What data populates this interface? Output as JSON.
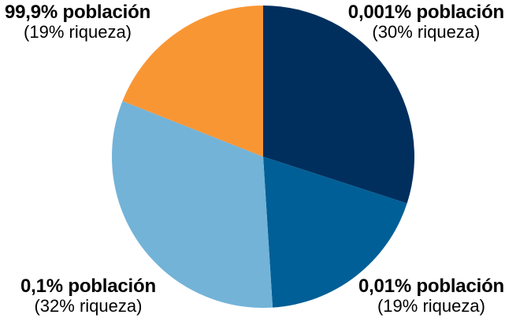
{
  "chart_data": {
    "type": "pie",
    "title": "",
    "slices": [
      {
        "label": "0,001% población",
        "sublabel": "(30% riqueza)",
        "value": 30,
        "color": "#002f5e"
      },
      {
        "label": "0,01% población",
        "sublabel": "(19% riqueza)",
        "value": 19,
        "color": "#005f96"
      },
      {
        "label": "0,1% población",
        "sublabel": "(32% riqueza)",
        "value": 32,
        "color": "#73b3d8"
      },
      {
        "label": "99,9% población",
        "sublabel": "(19% riqueza)",
        "value": 19,
        "color": "#f99634"
      }
    ],
    "start_angle_deg": 0,
    "direction": "clockwise",
    "legend": "none"
  }
}
